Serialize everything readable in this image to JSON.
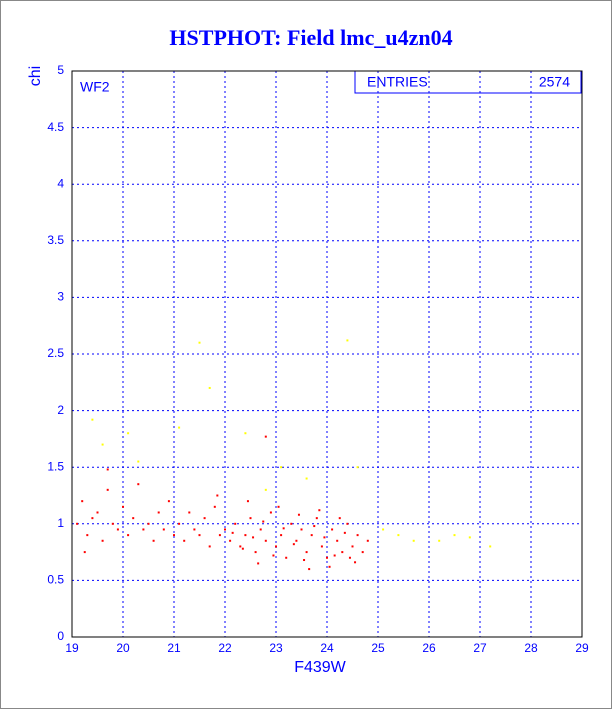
{
  "chart_data": {
    "type": "scatter",
    "title": "HSTPHOT: Field lmc_u4zn04",
    "annotation": "WF2",
    "stats_label": "ENTRIES",
    "stats_value": "2574",
    "x_label": "F439W",
    "y_label": "chi",
    "xlim": [
      19,
      29
    ],
    "ylim": [
      0,
      5
    ],
    "xticks": [
      19,
      20,
      21,
      22,
      23,
      24,
      25,
      26,
      27,
      28,
      29
    ],
    "yticks": [
      0,
      0.5,
      1,
      1.5,
      2,
      2.5,
      3,
      3.5,
      4,
      4.5,
      5
    ],
    "grid": true,
    "series": [
      {
        "color": "#ff0000",
        "x": [
          19.1,
          19.2,
          19.3,
          19.4,
          19.5,
          19.6,
          19.7,
          19.8,
          19.9,
          20.0,
          20.1,
          20.2,
          20.3,
          20.4,
          20.5,
          20.6,
          20.7,
          20.8,
          20.9,
          21.0,
          21.1,
          21.2,
          21.3,
          21.4,
          21.5,
          21.6,
          21.7,
          21.8,
          21.9,
          22.0,
          22.1,
          22.2,
          22.3,
          22.4,
          22.5,
          22.6,
          22.7,
          22.8,
          22.9,
          23.0,
          23.1,
          23.2,
          23.3,
          23.4,
          23.5,
          23.6,
          23.7,
          23.8,
          23.9,
          24.0,
          24.1,
          24.2,
          24.3,
          24.4,
          24.5,
          24.6,
          24.7,
          24.8,
          22.15,
          22.35,
          22.55,
          22.75,
          22.95,
          23.15,
          23.35,
          23.55,
          23.75,
          23.95,
          24.15,
          24.35,
          24.55,
          23.05,
          23.45,
          23.85,
          24.25,
          22.45,
          21.85,
          24.05,
          23.65,
          24.45,
          22.65,
          19.25,
          22.8,
          19.7
        ],
        "values": [
          1.0,
          1.2,
          0.9,
          1.05,
          1.1,
          0.85,
          1.3,
          1.0,
          0.95,
          1.15,
          0.9,
          1.05,
          1.35,
          0.95,
          1.0,
          0.85,
          1.1,
          0.95,
          1.2,
          0.9,
          1.0,
          0.85,
          1.1,
          0.95,
          0.9,
          1.05,
          0.8,
          1.15,
          0.9,
          0.95,
          0.85,
          1.0,
          0.8,
          0.9,
          1.05,
          0.75,
          0.95,
          0.85,
          1.1,
          0.8,
          0.9,
          0.7,
          1.0,
          0.85,
          0.95,
          0.75,
          0.9,
          1.05,
          0.8,
          0.7,
          0.95,
          0.85,
          0.75,
          1.0,
          0.8,
          0.9,
          0.75,
          0.85,
          0.92,
          0.78,
          0.88,
          1.02,
          0.72,
          0.96,
          0.82,
          0.68,
          0.98,
          0.88,
          0.72,
          0.92,
          0.66,
          1.15,
          1.08,
          1.12,
          1.05,
          1.2,
          1.25,
          0.62,
          0.6,
          0.7,
          0.65,
          0.75,
          1.77,
          1.48
        ]
      },
      {
        "color": "#ffff00",
        "x": [
          19.4,
          19.6,
          20.1,
          20.3,
          21.1,
          21.5,
          21.7,
          22.4,
          22.8,
          23.1,
          24.4,
          24.6,
          25.1,
          25.4,
          25.7,
          26.2,
          26.5,
          26.8,
          27.2,
          23.6
        ],
        "values": [
          1.92,
          1.7,
          1.8,
          1.55,
          1.85,
          2.6,
          2.2,
          1.8,
          1.3,
          1.5,
          2.62,
          1.5,
          0.95,
          0.9,
          0.85,
          0.85,
          0.9,
          0.88,
          0.8,
          1.4
        ]
      }
    ]
  }
}
